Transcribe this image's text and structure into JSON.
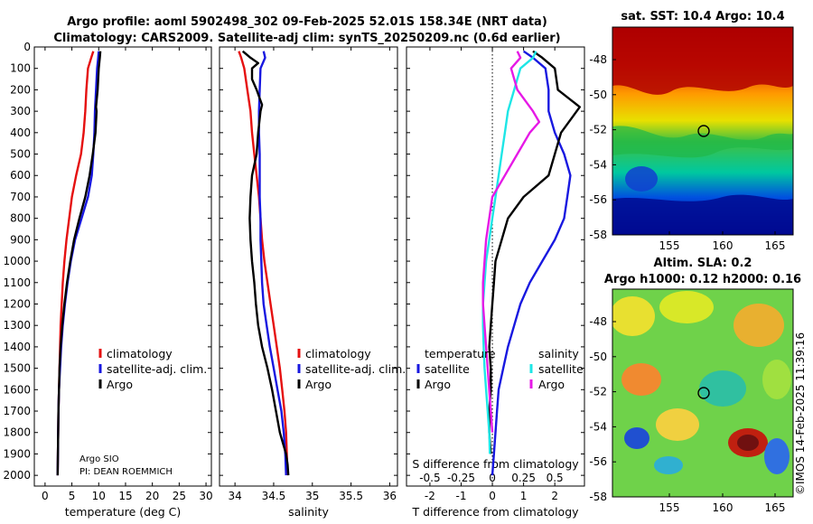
{
  "title": {
    "line1": "Argo profile: aoml 5902498_302 09-Feb-2025 52.01S 158.34E (NRT data)",
    "line2": "Climatology: CARS2009. Satellite-adj clim: synTS_20250209.nc (0.6d earlier)"
  },
  "colors": {
    "climatology": "#e51010",
    "satellite": "#1818e0",
    "argo": "#000000",
    "sal_satellite": "#1ee6e6",
    "sal_argo": "#e619e6"
  },
  "legend": {
    "climatology": "climatology",
    "satellite": "satellite-adj. clim.",
    "argo": "Argo",
    "temperature": "temperature",
    "salinity": "salinity",
    "satellite_short": "satellite"
  },
  "credits": {
    "argo_sio": "Argo SIO",
    "pi": "PI: DEAN ROEMMICH"
  },
  "maps": {
    "sst_title": "sat. SST: 10.4 Argo: 10.4",
    "sla_title1": "Altim. SLA: 0.2",
    "sla_title2": "Argo h1000: 0.12 h2000: 0.16",
    "lat_ticks": [
      "-48",
      "-50",
      "-52",
      "-54",
      "-56",
      "-58"
    ],
    "lon_ticks": [
      "155",
      "160",
      "165"
    ]
  },
  "imos_stamp": "©IMOS 14-Feb-2025 11:39:16",
  "chart_data": [
    {
      "type": "line",
      "name": "temperature",
      "xlabel": "temperature (deg C)",
      "xlim": [
        -2,
        31
      ],
      "ylim": [
        2050,
        0
      ],
      "xticks": [
        0,
        5,
        10,
        15,
        20,
        25,
        30
      ],
      "yticks": [
        0,
        100,
        200,
        300,
        400,
        500,
        600,
        700,
        800,
        900,
        1000,
        1100,
        1200,
        1300,
        1400,
        1500,
        1600,
        1700,
        1800,
        1900,
        2000
      ],
      "series": [
        {
          "name": "climatology",
          "x": [
            9.0,
            8.6,
            8.0,
            7.7,
            7.5,
            7.2,
            6.7,
            5.8,
            5.0,
            4.5,
            4.0,
            3.6,
            3.3,
            3.1,
            2.9,
            2.8,
            2.7,
            2.6,
            2.5,
            2.45,
            2.4,
            2.35
          ],
          "y": [
            20,
            50,
            100,
            200,
            300,
            400,
            500,
            600,
            700,
            800,
            900,
            1000,
            1100,
            1200,
            1300,
            1400,
            1500,
            1600,
            1700,
            1800,
            1900,
            2000
          ]
        },
        {
          "name": "satellite-adj. clim.",
          "x": [
            10.0,
            9.9,
            9.7,
            9.5,
            9.3,
            9.2,
            9.0,
            8.7,
            8.0,
            6.8,
            5.6,
            4.8,
            4.2,
            3.7,
            3.3,
            3.0,
            2.8,
            2.6,
            2.5,
            2.45,
            2.4,
            2.35
          ],
          "y": [
            20,
            50,
            100,
            200,
            300,
            400,
            500,
            600,
            700,
            800,
            900,
            1000,
            1100,
            1200,
            1300,
            1400,
            1500,
            1600,
            1700,
            1800,
            1900,
            2000
          ]
        },
        {
          "name": "Argo",
          "x": [
            10.3,
            10.2,
            10.0,
            9.8,
            9.5,
            9.6,
            9.4,
            8.9,
            8.3,
            7.5,
            6.4,
            5.4,
            4.7,
            4.1,
            3.6,
            3.2,
            2.9,
            2.7,
            2.6,
            2.5,
            2.45,
            2.4,
            2.35
          ],
          "y": [
            20,
            50,
            100,
            200,
            280,
            300,
            400,
            500,
            600,
            700,
            800,
            900,
            1000,
            1100,
            1200,
            1300,
            1400,
            1500,
            1600,
            1700,
            1800,
            1900,
            2000
          ]
        }
      ]
    },
    {
      "type": "line",
      "name": "salinity",
      "xlabel": "salinity",
      "xlim": [
        33.8,
        36.1
      ],
      "ylim": [
        2050,
        0
      ],
      "xticks": [
        34,
        34.5,
        35,
        35.5,
        36
      ],
      "series": [
        {
          "name": "climatology",
          "x": [
            34.05,
            34.08,
            34.12,
            34.16,
            34.2,
            34.22,
            34.25,
            34.28,
            34.31,
            34.33,
            34.35,
            34.38,
            34.42,
            34.46,
            34.5,
            34.54,
            34.58,
            34.61,
            34.64,
            34.66,
            34.67,
            34.68
          ],
          "y": [
            20,
            50,
            100,
            200,
            300,
            400,
            500,
            600,
            700,
            800,
            900,
            1000,
            1100,
            1200,
            1300,
            1400,
            1500,
            1600,
            1700,
            1800,
            1900,
            2000
          ]
        },
        {
          "name": "satellite-adj. clim.",
          "x": [
            34.37,
            34.39,
            34.33,
            34.32,
            34.31,
            34.31,
            34.32,
            34.32,
            34.32,
            34.33,
            34.33,
            34.34,
            34.35,
            34.37,
            34.41,
            34.45,
            34.5,
            34.55,
            34.6,
            34.63,
            34.65,
            34.66
          ],
          "y": [
            20,
            50,
            100,
            200,
            300,
            400,
            500,
            600,
            700,
            800,
            900,
            1000,
            1100,
            1200,
            1300,
            1400,
            1500,
            1600,
            1700,
            1800,
            1900,
            2000
          ]
        },
        {
          "name": "Argo",
          "x": [
            34.1,
            34.2,
            34.3,
            34.22,
            34.22,
            34.28,
            34.32,
            34.35,
            34.33,
            34.3,
            34.28,
            34.22,
            34.2,
            34.19,
            34.2,
            34.22,
            34.25,
            34.27,
            34.3,
            34.35,
            34.42,
            34.48,
            34.53,
            34.58,
            34.62,
            34.66,
            34.68,
            34.69
          ],
          "y": [
            20,
            50,
            75,
            100,
            150,
            200,
            240,
            270,
            300,
            400,
            500,
            600,
            700,
            800,
            900,
            1000,
            1100,
            1200,
            1300,
            1400,
            1500,
            1600,
            1700,
            1800,
            1850,
            1900,
            1950,
            2000
          ]
        }
      ]
    },
    {
      "type": "line",
      "name": "differences",
      "xlabel": "T difference from climatology",
      "xlabel_top": "S difference from climatology",
      "xlim": [
        -2.75,
        2.95
      ],
      "ylim": [
        2050,
        0
      ],
      "xticks": [
        -2,
        -1,
        0,
        1,
        2
      ],
      "s_ticks_labels": [
        "-0.5",
        "-0.25",
        "0",
        "0.25",
        "0.5"
      ],
      "s_ticks_positions_T_units": [
        -2,
        -1,
        0,
        1,
        2
      ],
      "series": [
        {
          "name": "temperature satellite",
          "x": [
            1.0,
            1.3,
            1.7,
            1.8,
            1.8,
            2.0,
            2.3,
            2.5,
            2.4,
            2.3,
            2.0,
            1.6,
            1.2,
            0.9,
            0.7,
            0.5,
            0.35,
            0.2,
            0.15,
            0.1,
            0.05,
            0.0
          ],
          "y": [
            20,
            50,
            100,
            200,
            300,
            400,
            500,
            600,
            700,
            800,
            900,
            1000,
            1100,
            1200,
            1300,
            1400,
            1500,
            1600,
            1700,
            1800,
            1900,
            2000
          ]
        },
        {
          "name": "temperature Argo",
          "x": [
            1.3,
            1.6,
            2.0,
            2.1,
            2.8,
            2.6,
            2.2,
            2.0,
            1.8,
            1.0,
            0.5,
            0.3,
            0.1,
            0.05,
            0.0,
            -0.05,
            -0.1,
            -0.05,
            -0.05,
            -0.1,
            -0.1,
            -0.05
          ],
          "y": [
            20,
            50,
            100,
            200,
            280,
            320,
            400,
            500,
            600,
            700,
            800,
            900,
            1000,
            1100,
            1200,
            1300,
            1400,
            1500,
            1600,
            1700,
            1800,
            1900
          ]
        },
        {
          "name": "salinity satellite",
          "x": [
            1.4,
            1.3,
            0.9,
            0.7,
            0.5,
            0.4,
            0.3,
            0.2,
            0.1,
            0.0,
            -0.1,
            -0.2,
            -0.25,
            -0.3,
            -0.3,
            -0.28,
            -0.25,
            -0.2,
            -0.15,
            -0.1,
            -0.08
          ],
          "y": [
            20,
            50,
            100,
            200,
            300,
            400,
            500,
            600,
            700,
            800,
            900,
            1000,
            1100,
            1200,
            1300,
            1400,
            1500,
            1600,
            1700,
            1800,
            1900
          ]
        },
        {
          "name": "salinity Argo",
          "x": [
            0.8,
            0.9,
            0.6,
            0.8,
            1.3,
            1.5,
            1.2,
            0.8,
            0.4,
            0.0,
            -0.1,
            -0.2,
            -0.25,
            -0.3,
            -0.3,
            -0.25,
            -0.2,
            -0.15,
            -0.1,
            -0.05,
            0.0
          ],
          "y": [
            20,
            50,
            100,
            200,
            300,
            350,
            400,
            500,
            600,
            700,
            800,
            900,
            1000,
            1100,
            1200,
            1300,
            1400,
            1500,
            1600,
            1700,
            1800
          ]
        }
      ]
    }
  ]
}
